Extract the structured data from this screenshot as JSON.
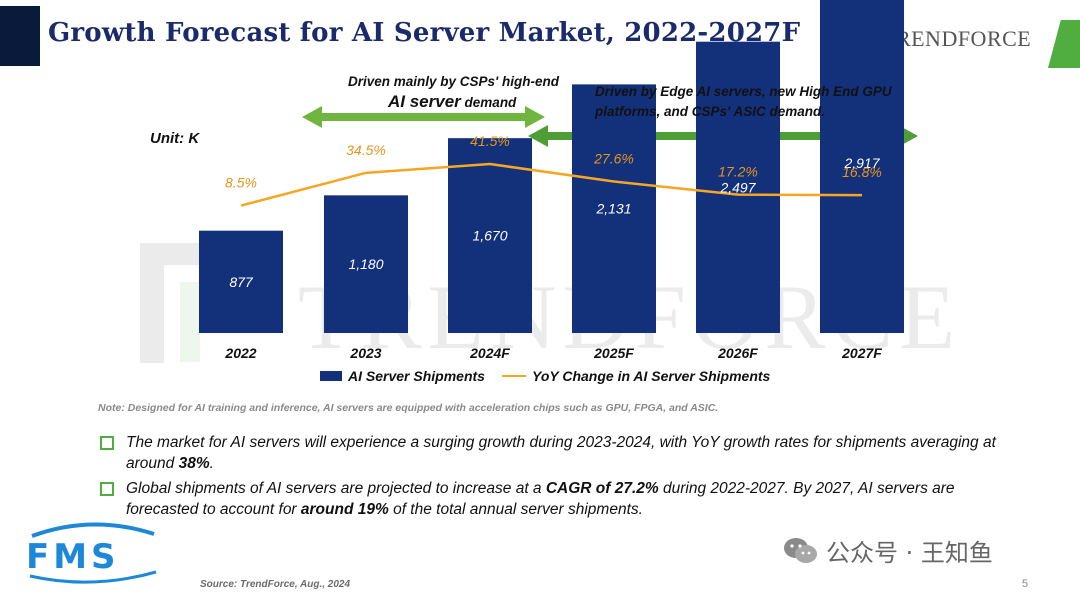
{
  "header": {
    "title": "Growth Forecast for AI Server Market, 2022-2027F",
    "logo_text": "TRENDFORCE",
    "colors": {
      "title": "#1b2a6b",
      "accent_green": "#4fae3f",
      "dark_tab": "#0a1a3a"
    }
  },
  "annotations": {
    "left_line1": "Driven mainly by CSPs' high-end",
    "left_line2_big": "AI server",
    "left_line2_small": "demand",
    "right_line1": "Driven by Edge AI servers, new High End GPU",
    "right_line2": "platforms, and CSPs' ASIC demand."
  },
  "unit_label": "Unit: K",
  "watermark": "TRENDFORCE",
  "chart_data": {
    "type": "bar",
    "categories": [
      "2022",
      "2023",
      "2024F",
      "2025F",
      "2026F",
      "2027F"
    ],
    "series": [
      {
        "name": "AI Server Shipments",
        "type": "bar",
        "color": "#13307a",
        "values": [
          877,
          1180,
          1670,
          2131,
          2497,
          2917
        ],
        "labels": [
          "877",
          "1,180",
          "1,670",
          "2,131",
          "2,497",
          "2,917"
        ]
      },
      {
        "name": "YoY Change in AI Server Shipments",
        "type": "line",
        "color": "#f5a623",
        "values": [
          8.5,
          34.5,
          41.5,
          27.6,
          17.2,
          16.8
        ],
        "labels": [
          "8.5%",
          "34.5%",
          "41.5%",
          "27.6%",
          "17.2%",
          "16.8%"
        ]
      }
    ],
    "bar_ylim": [
      0,
      3600
    ],
    "line_ylim": [
      -45,
      55
    ],
    "legend_position": "bottom",
    "grid": false
  },
  "note": "Note: Designed for AI  training and inference, AI servers are equipped with acceleration chips such as GPU, FPGA, and ASIC.",
  "bullets": [
    {
      "pre": "The market for AI servers will experience a surging growth during 2023-2024, with YoY growth rates for shipments averaging at around ",
      "bold": "38%",
      "post": "."
    },
    {
      "pre": "Global shipments of AI servers are projected to increase at a ",
      "bold": "CAGR of 27.2%",
      "mid": " during 2022-2027. By 2027, AI servers are forecasted to account for ",
      "bold2": "around 19%",
      "post": " of the total annual server shipments."
    }
  ],
  "source": "Source: TrendForce, Aug., 2024",
  "wechat_label": "公众号 · 王知鱼",
  "page_number": "5"
}
